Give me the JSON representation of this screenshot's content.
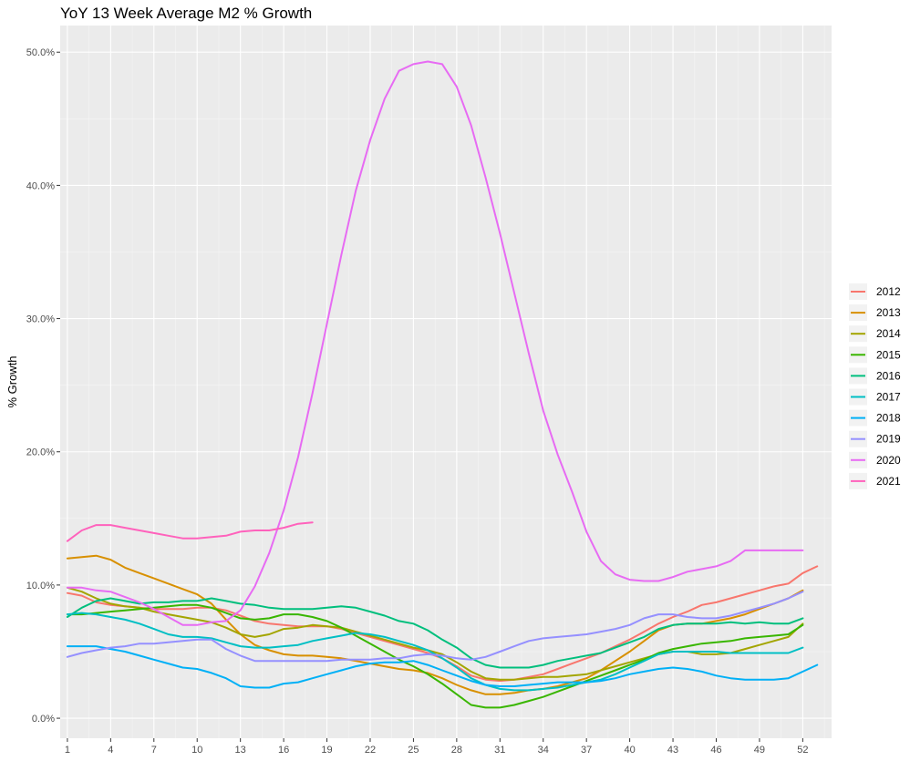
{
  "chart_data": {
    "type": "line",
    "title": "YoY 13 Week Average M2 % Growth",
    "xlabel": "",
    "ylabel": "% Growth",
    "xlim": [
      0.5,
      54.0
    ],
    "ylim": [
      -1.5,
      52.0
    ],
    "x_ticks": [
      1,
      4,
      7,
      10,
      13,
      16,
      19,
      22,
      25,
      28,
      31,
      34,
      37,
      40,
      43,
      46,
      49,
      52
    ],
    "y_ticks": [
      0,
      10,
      20,
      30,
      40,
      50
    ],
    "y_tick_labels": [
      "0.0%",
      "10.0%",
      "20.0%",
      "30.0%",
      "40.0%",
      "50.0%"
    ],
    "grid": true,
    "legend_position": "right",
    "series": [
      {
        "name": "2012",
        "color": "#F8766D",
        "x": [
          1,
          2,
          3,
          4,
          5,
          6,
          7,
          8,
          9,
          10,
          11,
          12,
          13,
          14,
          15,
          16,
          17,
          18,
          19,
          20,
          21,
          22,
          23,
          24,
          25,
          26,
          27,
          28,
          29,
          30,
          31,
          32,
          33,
          34,
          35,
          36,
          37,
          38,
          39,
          40,
          41,
          42,
          43,
          44,
          45,
          46,
          47,
          48,
          49,
          50,
          51,
          52,
          53
        ],
        "values": [
          9.4,
          9.2,
          8.7,
          8.5,
          8.4,
          8.3,
          8.2,
          8.2,
          8.2,
          8.3,
          8.3,
          8.1,
          7.7,
          7.3,
          7.1,
          7.0,
          6.9,
          6.9,
          6.9,
          6.7,
          6.4,
          6.1,
          5.8,
          5.5,
          5.2,
          4.9,
          4.5,
          3.9,
          3.2,
          2.9,
          2.8,
          2.9,
          3.1,
          3.3,
          3.7,
          4.1,
          4.5,
          4.9,
          5.4,
          5.9,
          6.5,
          7.1,
          7.6,
          8.0,
          8.5,
          8.7,
          9.0,
          9.3,
          9.6,
          9.9,
          10.1,
          10.9,
          11.4
        ]
      },
      {
        "name": "2013",
        "color": "#D89000",
        "x": [
          1,
          2,
          3,
          4,
          5,
          6,
          7,
          8,
          9,
          10,
          11,
          12,
          13,
          14,
          15,
          16,
          17,
          18,
          19,
          20,
          21,
          22,
          23,
          24,
          25,
          26,
          27,
          28,
          29,
          30,
          31,
          32,
          33,
          34,
          35,
          36,
          37,
          38,
          39,
          40,
          41,
          42,
          43,
          44,
          45,
          46,
          47,
          48,
          49,
          50,
          51,
          52
        ],
        "values": [
          12.0,
          12.1,
          12.2,
          11.9,
          11.3,
          10.9,
          10.5,
          10.1,
          9.7,
          9.3,
          8.6,
          7.4,
          6.3,
          5.5,
          5.1,
          4.8,
          4.7,
          4.7,
          4.6,
          4.5,
          4.3,
          4.1,
          3.9,
          3.7,
          3.6,
          3.4,
          3.0,
          2.5,
          2.1,
          1.8,
          1.8,
          1.9,
          2.1,
          2.2,
          2.4,
          2.7,
          3.0,
          3.6,
          4.3,
          5.0,
          5.8,
          6.6,
          7.0,
          7.1,
          7.1,
          7.3,
          7.5,
          7.8,
          8.2,
          8.6,
          9.0,
          9.6
        ]
      },
      {
        "name": "2014",
        "color": "#A3A500",
        "x": [
          1,
          2,
          3,
          4,
          5,
          6,
          7,
          8,
          9,
          10,
          11,
          12,
          13,
          14,
          15,
          16,
          17,
          18,
          19,
          20,
          21,
          22,
          23,
          24,
          25,
          26,
          27,
          28,
          29,
          30,
          31,
          32,
          33,
          34,
          35,
          36,
          37,
          38,
          39,
          40,
          41,
          42,
          43,
          44,
          45,
          46,
          47,
          48,
          49,
          50,
          51,
          52
        ],
        "values": [
          9.8,
          9.5,
          9.0,
          8.6,
          8.4,
          8.3,
          8.0,
          7.8,
          7.6,
          7.4,
          7.2,
          6.8,
          6.3,
          6.1,
          6.3,
          6.7,
          6.8,
          7.0,
          6.9,
          6.8,
          6.5,
          6.2,
          5.9,
          5.6,
          5.3,
          5.1,
          4.8,
          4.2,
          3.5,
          3.0,
          2.9,
          2.9,
          3.0,
          3.1,
          3.1,
          3.2,
          3.3,
          3.6,
          3.9,
          4.2,
          4.5,
          4.8,
          5.0,
          5.0,
          4.8,
          4.8,
          4.9,
          5.2,
          5.5,
          5.8,
          6.1,
          7.1
        ]
      },
      {
        "name": "2015",
        "color": "#39B600",
        "x": [
          1,
          2,
          3,
          4,
          5,
          6,
          7,
          8,
          9,
          10,
          11,
          12,
          13,
          14,
          15,
          16,
          17,
          18,
          19,
          20,
          21,
          22,
          23,
          24,
          25,
          26,
          27,
          28,
          29,
          30,
          31,
          32,
          33,
          34,
          35,
          36,
          37,
          38,
          39,
          40,
          41,
          42,
          43,
          44,
          45,
          46,
          47,
          48,
          49,
          50,
          51,
          52
        ],
        "values": [
          7.8,
          7.8,
          7.9,
          8.0,
          8.1,
          8.2,
          8.3,
          8.4,
          8.5,
          8.5,
          8.3,
          7.9,
          7.5,
          7.4,
          7.5,
          7.8,
          7.8,
          7.6,
          7.3,
          6.8,
          6.2,
          5.6,
          5.0,
          4.4,
          3.9,
          3.3,
          2.6,
          1.8,
          1.0,
          0.8,
          0.8,
          1.0,
          1.3,
          1.6,
          2.0,
          2.4,
          2.8,
          3.2,
          3.6,
          4.0,
          4.4,
          4.9,
          5.2,
          5.4,
          5.6,
          5.7,
          5.8,
          6.0,
          6.1,
          6.2,
          6.3,
          7.0
        ]
      },
      {
        "name": "2016",
        "color": "#00BF7D",
        "x": [
          1,
          2,
          3,
          4,
          5,
          6,
          7,
          8,
          9,
          10,
          11,
          12,
          13,
          14,
          15,
          16,
          17,
          18,
          19,
          20,
          21,
          22,
          23,
          24,
          25,
          26,
          27,
          28,
          29,
          30,
          31,
          32,
          33,
          34,
          35,
          36,
          37,
          38,
          39,
          40,
          41,
          42,
          43,
          44,
          45,
          46,
          47,
          48,
          49,
          50,
          51,
          52
        ],
        "values": [
          7.6,
          8.3,
          8.8,
          9.0,
          8.8,
          8.6,
          8.7,
          8.7,
          8.8,
          8.8,
          9.0,
          8.8,
          8.6,
          8.5,
          8.3,
          8.2,
          8.2,
          8.2,
          8.3,
          8.4,
          8.3,
          8.0,
          7.7,
          7.3,
          7.1,
          6.6,
          5.9,
          5.3,
          4.5,
          4.0,
          3.8,
          3.8,
          3.8,
          4.0,
          4.3,
          4.5,
          4.7,
          4.9,
          5.3,
          5.7,
          6.1,
          6.7,
          7.0,
          7.1,
          7.1,
          7.1,
          7.2,
          7.1,
          7.2,
          7.1,
          7.1,
          7.5
        ]
      },
      {
        "name": "2017",
        "color": "#00BFC4",
        "x": [
          1,
          2,
          3,
          4,
          5,
          6,
          7,
          8,
          9,
          10,
          11,
          12,
          13,
          14,
          15,
          16,
          17,
          18,
          19,
          20,
          21,
          22,
          23,
          24,
          25,
          26,
          27,
          28,
          29,
          30,
          31,
          32,
          33,
          34,
          35,
          36,
          37,
          38,
          39,
          40,
          41,
          42,
          43,
          44,
          45,
          46,
          47,
          48,
          49,
          50,
          51,
          52
        ],
        "values": [
          7.8,
          7.9,
          7.8,
          7.6,
          7.4,
          7.1,
          6.7,
          6.3,
          6.1,
          6.1,
          6.0,
          5.7,
          5.4,
          5.3,
          5.3,
          5.4,
          5.5,
          5.8,
          6.0,
          6.2,
          6.4,
          6.3,
          6.1,
          5.8,
          5.5,
          5.1,
          4.5,
          3.8,
          3.0,
          2.5,
          2.2,
          2.1,
          2.1,
          2.2,
          2.3,
          2.5,
          2.7,
          2.9,
          3.3,
          3.8,
          4.3,
          4.8,
          5.0,
          5.0,
          5.0,
          5.0,
          4.9,
          4.9,
          4.9,
          4.9,
          4.9,
          5.3
        ]
      },
      {
        "name": "2018",
        "color": "#00B0F6",
        "x": [
          1,
          2,
          3,
          4,
          5,
          6,
          7,
          8,
          9,
          10,
          11,
          12,
          13,
          14,
          15,
          16,
          17,
          18,
          19,
          20,
          21,
          22,
          23,
          24,
          25,
          26,
          27,
          28,
          29,
          30,
          31,
          32,
          33,
          34,
          35,
          36,
          37,
          38,
          39,
          40,
          41,
          42,
          43,
          44,
          45,
          46,
          47,
          48,
          49,
          50,
          51,
          52,
          53
        ],
        "values": [
          5.4,
          5.4,
          5.4,
          5.2,
          5.0,
          4.7,
          4.4,
          4.1,
          3.8,
          3.7,
          3.4,
          3.0,
          2.4,
          2.3,
          2.3,
          2.6,
          2.7,
          3.0,
          3.3,
          3.6,
          3.9,
          4.1,
          4.2,
          4.2,
          4.3,
          4.0,
          3.6,
          3.2,
          2.8,
          2.5,
          2.4,
          2.4,
          2.5,
          2.6,
          2.7,
          2.7,
          2.7,
          2.8,
          3.0,
          3.3,
          3.5,
          3.7,
          3.8,
          3.7,
          3.5,
          3.2,
          3.0,
          2.9,
          2.9,
          2.9,
          3.0,
          3.5,
          4.0
        ]
      },
      {
        "name": "2019",
        "color": "#9590FF",
        "x": [
          1,
          2,
          3,
          4,
          5,
          6,
          7,
          8,
          9,
          10,
          11,
          12,
          13,
          14,
          15,
          16,
          17,
          18,
          19,
          20,
          21,
          22,
          23,
          24,
          25,
          26,
          27,
          28,
          29,
          30,
          31,
          32,
          33,
          34,
          35,
          36,
          37,
          38,
          39,
          40,
          41,
          42,
          43,
          44,
          45,
          46,
          47,
          48,
          49,
          50,
          51,
          52
        ],
        "values": [
          4.6,
          4.9,
          5.1,
          5.3,
          5.4,
          5.6,
          5.6,
          5.7,
          5.8,
          5.9,
          5.9,
          5.2,
          4.7,
          4.3,
          4.3,
          4.3,
          4.3,
          4.3,
          4.3,
          4.4,
          4.4,
          4.4,
          4.5,
          4.5,
          4.7,
          4.8,
          4.7,
          4.5,
          4.4,
          4.6,
          5.0,
          5.4,
          5.8,
          6.0,
          6.1,
          6.2,
          6.3,
          6.5,
          6.7,
          7.0,
          7.5,
          7.8,
          7.8,
          7.6,
          7.5,
          7.5,
          7.7,
          8.0,
          8.3,
          8.6,
          9.0,
          9.5
        ]
      },
      {
        "name": "2020",
        "color": "#E76BF3",
        "x": [
          1,
          2,
          3,
          4,
          5,
          6,
          7,
          8,
          9,
          10,
          11,
          12,
          13,
          14,
          15,
          16,
          17,
          18,
          19,
          20,
          21,
          22,
          23,
          24,
          25,
          26,
          27,
          28,
          29,
          30,
          31,
          32,
          33,
          34,
          35,
          36,
          37,
          38,
          39,
          40,
          41,
          42,
          43,
          44,
          45,
          46,
          47,
          48,
          49,
          50,
          51,
          52
        ],
        "values": [
          9.8,
          9.8,
          9.6,
          9.5,
          9.1,
          8.7,
          8.2,
          7.6,
          7.0,
          7.0,
          7.2,
          7.3,
          8.1,
          9.9,
          12.4,
          15.6,
          19.6,
          24.4,
          29.6,
          34.8,
          39.6,
          43.4,
          46.5,
          48.6,
          49.1,
          49.3,
          49.1,
          47.4,
          44.5,
          40.6,
          36.4,
          31.9,
          27.4,
          23.1,
          19.8,
          17.0,
          14.0,
          11.8,
          10.8,
          10.4,
          10.3,
          10.3,
          10.6,
          11.0,
          11.2,
          11.4,
          11.8,
          12.6,
          12.6,
          12.6,
          12.6,
          12.6
        ]
      },
      {
        "name": "2021",
        "color": "#FF62BC",
        "x": [
          1,
          2,
          3,
          4,
          5,
          6,
          7,
          8,
          9,
          10,
          11,
          12,
          13,
          14,
          15,
          16,
          17,
          18
        ],
        "values": [
          13.3,
          14.1,
          14.5,
          14.5,
          14.3,
          14.1,
          13.9,
          13.7,
          13.5,
          13.5,
          13.6,
          13.7,
          14.0,
          14.1,
          14.1,
          14.3,
          14.6,
          14.7
        ]
      }
    ]
  }
}
